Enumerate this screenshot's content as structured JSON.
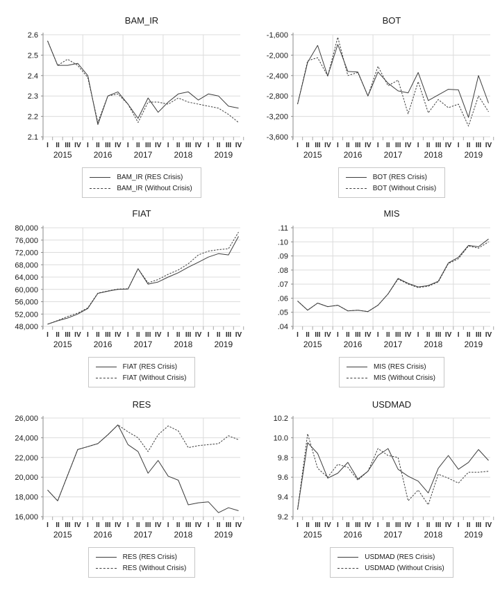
{
  "colors": {
    "line": "#3c3c3c",
    "grid": "#dcdcdc",
    "axis": "#8a8a8a",
    "tick": "#a6a6a6",
    "text": "#1a1a1a",
    "legend_border": "#c6c6c6",
    "background": "#ffffff"
  },
  "chart_data": {
    "type": "line",
    "layout": "2x3-grid",
    "x_axis": {
      "quarter_labels": [
        "I",
        "II",
        "III",
        "IV"
      ],
      "year_labels": [
        "2015",
        "2016",
        "2017",
        "2018",
        "2019"
      ],
      "gridlines": "vertical-at-year-boundaries"
    },
    "charts": [
      {
        "title": "BAM_IR",
        "ylim": [
          2.1,
          2.6
        ],
        "yticks": [
          {
            "value": 2.6,
            "label": "2.6"
          },
          {
            "value": 2.5,
            "label": "2.5"
          },
          {
            "value": 2.4,
            "label": "2.4"
          },
          {
            "value": 2.3,
            "label": "2.3"
          },
          {
            "value": 2.2,
            "label": "2.2"
          },
          {
            "value": 2.1,
            "label": "2.1"
          }
        ],
        "series": [
          {
            "name": "BAM_IR (RES Crisis)",
            "line_style": "solid",
            "values": [
              2.57,
              2.45,
              2.45,
              2.46,
              2.4,
              2.16,
              2.3,
              2.32,
              2.26,
              2.19,
              2.29,
              2.22,
              2.27,
              2.31,
              2.32,
              2.28,
              2.31,
              2.3,
              2.25,
              2.24
            ]
          },
          {
            "name": "BAM_IR (Without Crisis)",
            "line_style": "dashed",
            "values": [
              2.57,
              2.45,
              2.48,
              2.45,
              2.39,
              2.17,
              2.3,
              2.31,
              2.26,
              2.17,
              2.27,
              2.27,
              2.26,
              2.29,
              2.27,
              2.26,
              2.25,
              2.24,
              2.21,
              2.17
            ]
          }
        ]
      },
      {
        "title": "BOT",
        "ylim": [
          -3600,
          -1600
        ],
        "yticks": [
          {
            "value": -1600,
            "label": "-1,600"
          },
          {
            "value": -2000,
            "label": "-2,000"
          },
          {
            "value": -2400,
            "label": "-2,400"
          },
          {
            "value": -2800,
            "label": "-2,800"
          },
          {
            "value": -3200,
            "label": "-3,200"
          },
          {
            "value": -3600,
            "label": "-3,600"
          }
        ],
        "series": [
          {
            "name": "BOT (RES Crisis)",
            "line_style": "solid",
            "values": [
              -2960,
              -2140,
              -1810,
              -2410,
              -1790,
              -2320,
              -2330,
              -2800,
              -2330,
              -2550,
              -2700,
              -2740,
              -2340,
              -2890,
              -2780,
              -2670,
              -2680,
              -3220,
              -2400,
              -2940
            ]
          },
          {
            "name": "BOT (Without Crisis)",
            "line_style": "dashed",
            "values": [
              -2960,
              -2110,
              -2050,
              -2410,
              -1650,
              -2400,
              -2340,
              -2800,
              -2220,
              -2600,
              -2490,
              -3150,
              -2520,
              -3130,
              -2870,
              -3030,
              -2960,
              -3390,
              -2800,
              -3110
            ]
          }
        ]
      },
      {
        "title": "FIAT",
        "ylim": [
          48000,
          80000
        ],
        "yticks": [
          {
            "value": 80000,
            "label": "80,000"
          },
          {
            "value": 76000,
            "label": "76,000"
          },
          {
            "value": 72000,
            "label": "72,000"
          },
          {
            "value": 68000,
            "label": "68,000"
          },
          {
            "value": 64000,
            "label": "64,000"
          },
          {
            "value": 60000,
            "label": "60,000"
          },
          {
            "value": 56000,
            "label": "56,000"
          },
          {
            "value": 52000,
            "label": "52,000"
          },
          {
            "value": 48000,
            "label": "48,000"
          }
        ],
        "series": [
          {
            "name": "FIAT (RES Crisis)",
            "line_style": "solid",
            "values": [
              48700,
              49800,
              50700,
              52000,
              53800,
              58700,
              59400,
              60000,
              60100,
              66700,
              61700,
              62400,
              64000,
              65400,
              67200,
              68800,
              70500,
              71600,
              71200,
              77200
            ]
          },
          {
            "name": "FIAT (Without Crisis)",
            "line_style": "dashed",
            "values": [
              48700,
              49900,
              51200,
              52300,
              54000,
              58800,
              59500,
              60100,
              60200,
              66700,
              62100,
              63200,
              64900,
              66300,
              68300,
              71200,
              72400,
              72900,
              73200,
              78600
            ]
          }
        ]
      },
      {
        "title": "MIS",
        "ylim": [
          0.04,
          0.11
        ],
        "yticks": [
          {
            "value": 0.11,
            "label": ".11"
          },
          {
            "value": 0.1,
            "label": ".10"
          },
          {
            "value": 0.09,
            "label": ".09"
          },
          {
            "value": 0.08,
            "label": ".08"
          },
          {
            "value": 0.07,
            "label": ".07"
          },
          {
            "value": 0.06,
            "label": ".06"
          },
          {
            "value": 0.05,
            "label": ".05"
          },
          {
            "value": 0.04,
            "label": ".04"
          }
        ],
        "series": [
          {
            "name": "MIS (RES Crisis)",
            "line_style": "solid",
            "values": [
              0.058,
              0.0515,
              0.0565,
              0.054,
              0.055,
              0.051,
              0.0515,
              0.0505,
              0.055,
              0.063,
              0.074,
              0.0705,
              0.068,
              0.069,
              0.072,
              0.085,
              0.089,
              0.0975,
              0.0965,
              0.102
            ]
          },
          {
            "name": "MIS (Without Crisis)",
            "line_style": "dashed",
            "values": [
              0.058,
              0.0515,
              0.0565,
              0.054,
              0.055,
              0.051,
              0.0515,
              0.0505,
              0.055,
              0.063,
              0.0735,
              0.07,
              0.0675,
              0.0685,
              0.0715,
              0.0845,
              0.088,
              0.097,
              0.0955,
              0.1
            ]
          }
        ]
      },
      {
        "title": "RES",
        "ylim": [
          16000,
          26000
        ],
        "yticks": [
          {
            "value": 26000,
            "label": "26,000"
          },
          {
            "value": 24000,
            "label": "24,000"
          },
          {
            "value": 22000,
            "label": "22,000"
          },
          {
            "value": 20000,
            "label": "20,000"
          },
          {
            "value": 18000,
            "label": "18,000"
          },
          {
            "value": 16000,
            "label": "16,000"
          }
        ],
        "series": [
          {
            "name": "RES (RES Crisis)",
            "line_style": "solid",
            "values": [
              18700,
              17600,
              20200,
              22800,
              23100,
              23400,
              24300,
              25300,
              23300,
              22600,
              20400,
              21700,
              20100,
              19700,
              17200,
              17400,
              17500,
              16400,
              16900,
              16600
            ]
          },
          {
            "name": "RES (Without Crisis)",
            "line_style": "dashed",
            "values": [
              18700,
              17600,
              20200,
              22800,
              23100,
              23400,
              24300,
              25300,
              24600,
              24000,
              22600,
              24300,
              25200,
              24700,
              23000,
              23200,
              23300,
              23400,
              24200,
              23800
            ]
          }
        ]
      },
      {
        "title": "USDMAD",
        "ylim": [
          9.2,
          10.2
        ],
        "yticks": [
          {
            "value": 10.2,
            "label": "10.2"
          },
          {
            "value": 10.0,
            "label": "10.0"
          },
          {
            "value": 9.8,
            "label": "9.8"
          },
          {
            "value": 9.6,
            "label": "9.6"
          },
          {
            "value": 9.4,
            "label": "9.4"
          },
          {
            "value": 9.2,
            "label": "9.2"
          }
        ],
        "series": [
          {
            "name": "USDMAD (RES Crisis)",
            "line_style": "solid",
            "values": [
              9.27,
              9.95,
              9.84,
              9.59,
              9.64,
              9.75,
              9.58,
              9.66,
              9.82,
              9.89,
              9.68,
              9.61,
              9.56,
              9.44,
              9.69,
              9.82,
              9.68,
              9.75,
              9.88,
              9.77
            ]
          },
          {
            "name": "USDMAD (Without Crisis)",
            "line_style": "dashed",
            "values": [
              9.27,
              10.04,
              9.69,
              9.6,
              9.73,
              9.7,
              9.57,
              9.66,
              9.89,
              9.82,
              9.8,
              9.36,
              9.47,
              9.32,
              9.63,
              9.59,
              9.54,
              9.65,
              9.65,
              9.66
            ]
          }
        ]
      }
    ]
  }
}
